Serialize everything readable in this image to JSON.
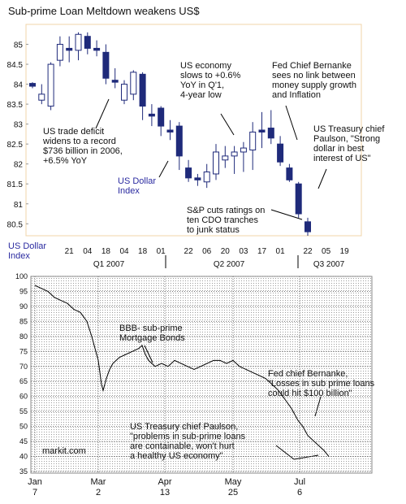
{
  "chart_data": [
    {
      "type": "candlestick",
      "title": "Sub-prime Loan Meltdown weakens US$",
      "categories": [
        null,
        null,
        null,
        null,
        "21",
        null,
        "04",
        null,
        "18",
        null,
        "04",
        null,
        "18",
        null,
        "01",
        null,
        null,
        "22",
        null,
        "06",
        null,
        "20",
        null,
        "03",
        null,
        "17",
        null,
        "01",
        null,
        null,
        "22",
        null,
        "05",
        null,
        "19"
      ],
      "open": [
        84.02,
        83.6,
        83.45,
        84.6,
        84.9,
        84.85,
        85.2,
        84.9,
        84.8,
        84.1,
        83.6,
        83.75,
        84.25,
        83.25,
        83.4,
        82.85,
        82.95,
        81.9,
        81.65,
        81.55,
        81.75,
        82.1,
        82.2,
        82.3,
        82.35,
        82.85,
        82.9,
        82.5,
        81.9,
        81.5,
        80.55,
        null,
        null,
        null,
        null
      ],
      "high": [
        84.05,
        84.0,
        84.55,
        85.2,
        85.2,
        85.3,
        85.3,
        85.1,
        85.0,
        84.4,
        84.1,
        84.35,
        84.3,
        83.5,
        83.45,
        83.1,
        83.05,
        82.1,
        81.75,
        82.0,
        82.5,
        82.45,
        82.45,
        82.55,
        83.05,
        83.3,
        83.35,
        82.7,
        82.0,
        81.55,
        80.65,
        null,
        null,
        null,
        null
      ],
      "low": [
        83.9,
        83.5,
        83.35,
        84.45,
        84.55,
        84.6,
        84.75,
        84.7,
        84.0,
        83.9,
        83.5,
        83.6,
        83.1,
        82.95,
        82.7,
        82.6,
        81.85,
        81.55,
        81.45,
        81.4,
        81.6,
        81.9,
        81.75,
        81.8,
        81.85,
        82.4,
        82.5,
        81.95,
        81.55,
        80.65,
        80.2,
        null,
        null,
        null,
        null
      ],
      "close": [
        83.95,
        83.75,
        84.5,
        85.0,
        84.85,
        85.25,
        84.9,
        84.85,
        84.15,
        84.05,
        84.0,
        84.3,
        83.45,
        83.2,
        82.95,
        82.8,
        82.2,
        81.65,
        81.6,
        81.8,
        82.3,
        82.2,
        82.3,
        82.4,
        82.8,
        82.8,
        82.65,
        82.05,
        81.6,
        80.75,
        80.3,
        null,
        null,
        null,
        null
      ],
      "up_color": "#ffffff",
      "down_color": "#1f2a7a",
      "edge_color": "#1f2a7a",
      "ylim": [
        80.2,
        85.5
      ],
      "yticks": [
        80.5,
        81,
        81.5,
        82,
        82.5,
        83,
        83.5,
        84,
        84.5,
        85
      ],
      "quarters": [
        "Q1 2007",
        "Q2 2007",
        "Q3 2007"
      ],
      "annotations": [
        {
          "lines": [
            "US trade deficit",
            "widens to a record",
            "$736 billion in 2006,",
            "+6.5% YoY"
          ]
        },
        {
          "lines": [
            "US economy",
            "slows to +0.6%",
            "YoY in Q'1,",
            "4-year low"
          ]
        },
        {
          "lines": [
            "Fed Chief Bernanke",
            "sees no link between",
            "money supply growth",
            "and Inflation"
          ]
        },
        {
          "lines": [
            "US Treasury chief",
            "Paulson, \"Strong",
            "dollar in best",
            "interest of US\""
          ]
        },
        {
          "lines": [
            "S&P cuts ratings on",
            "ten CDO tranches",
            "to junk status"
          ]
        },
        {
          "lines": [
            "US Dollar",
            "Index"
          ]
        }
      ]
    },
    {
      "type": "line",
      "ylabel": [
        "US Dollar",
        "Index"
      ],
      "x": [
        0,
        4,
        8,
        12,
        16,
        20,
        24,
        28,
        32,
        35,
        37,
        39,
        41,
        42,
        44,
        46,
        48,
        52,
        56,
        60,
        64,
        66,
        68,
        70,
        74,
        78,
        82,
        86,
        90,
        94,
        98,
        102,
        106,
        110,
        114,
        118,
        122,
        126,
        130,
        134,
        138,
        142,
        146,
        150,
        154,
        158,
        162,
        165,
        168,
        172,
        176,
        178,
        181
      ],
      "values": [
        97,
        96,
        95,
        93,
        92,
        91,
        89,
        88,
        85,
        80,
        76,
        72,
        64,
        62,
        66,
        69,
        71,
        73,
        74,
        75,
        76,
        77,
        74,
        72,
        70,
        71,
        70,
        72,
        71,
        70,
        69,
        70,
        71,
        72,
        72,
        71,
        72,
        70,
        69,
        68,
        67,
        66,
        64,
        62,
        59,
        56,
        52,
        50,
        47,
        45,
        43,
        42,
        40
      ],
      "color": "#000000",
      "xlim": [
        -2.5,
        207.5
      ],
      "xticks": [
        {
          "value": 0,
          "label": [
            "Jan",
            "7"
          ]
        },
        {
          "value": 39,
          "label": [
            "Mar",
            "2"
          ]
        },
        {
          "value": 80,
          "label": [
            "Apr",
            "13"
          ]
        },
        {
          "value": 122,
          "label": [
            "May",
            "25"
          ]
        },
        {
          "value": 163,
          "label": [
            "Jul",
            "6"
          ]
        }
      ],
      "ylim": [
        35,
        100
      ],
      "yticks": [
        35,
        40,
        45,
        50,
        55,
        60,
        65,
        70,
        75,
        80,
        85,
        90,
        95,
        100
      ],
      "grid": true,
      "annotations": [
        {
          "lines": [
            "BBB- sub-prime",
            "Mortgage Bonds"
          ]
        },
        {
          "lines": [
            "Fed chief Bernanke,",
            "\"Losses in sub prime loans",
            "could hit $100 billion\""
          ]
        },
        {
          "lines": [
            "US Treasury chief Paulson,",
            "\"problems in sub-prime loans",
            "are containable, won't hurt",
            "a healthy US economy\""
          ]
        },
        {
          "lines": [
            "markit.com"
          ]
        }
      ]
    }
  ]
}
